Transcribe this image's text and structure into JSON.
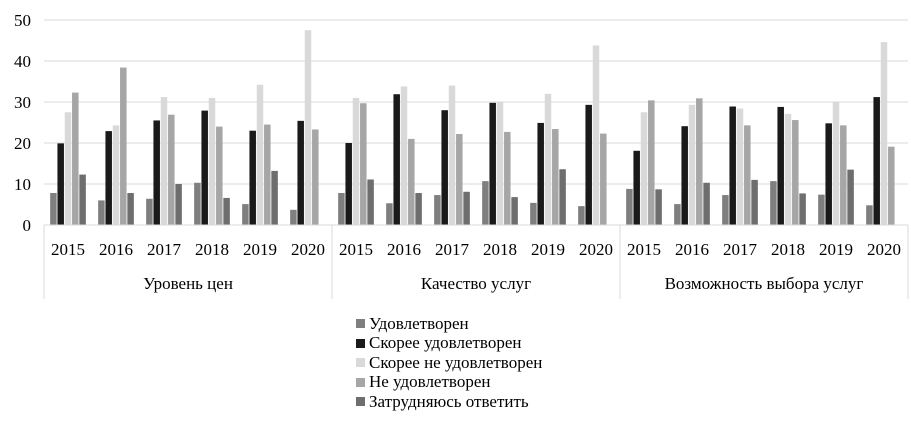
{
  "chart_data": {
    "type": "bar",
    "title": "",
    "xlabel": "",
    "ylabel": "",
    "ylim": [
      0,
      50
    ],
    "yticks": [
      0,
      10,
      20,
      30,
      40,
      50
    ],
    "grid": true,
    "legend_position": "bottom",
    "groups": [
      {
        "label": "Уровень цен",
        "categories": [
          "2015",
          "2016",
          "2017",
          "2018",
          "2019",
          "2020"
        ]
      },
      {
        "label": "Качество услуг",
        "categories": [
          "2015",
          "2016",
          "2017",
          "2018",
          "2019",
          "2020"
        ]
      },
      {
        "label": "Возможность выбора услуг",
        "categories": [
          "2015",
          "2016",
          "2017",
          "2018",
          "2019",
          "2020"
        ]
      }
    ],
    "series": [
      {
        "name": "Удовлетворен",
        "color": "#7f7f7f",
        "values": [
          7.8,
          6.0,
          6.4,
          10.3,
          5.1,
          3.7,
          7.8,
          5.3,
          7.3,
          10.7,
          5.4,
          4.6,
          8.8,
          5.1,
          7.3,
          10.7,
          7.4,
          4.8
        ]
      },
      {
        "name": "Скорее удовлетворен",
        "color": "#1a1a1a",
        "values": [
          19.9,
          22.9,
          25.5,
          27.9,
          23.0,
          25.4,
          20.0,
          31.9,
          28.0,
          29.8,
          24.9,
          29.3,
          18.1,
          24.1,
          28.9,
          28.8,
          24.8,
          31.2
        ]
      },
      {
        "name": "Скорее не удовлетворен",
        "color": "#d9d9d9",
        "values": [
          27.5,
          24.3,
          31.2,
          31.0,
          34.2,
          47.5,
          31.0,
          33.8,
          34.0,
          30.0,
          32.0,
          43.8,
          27.5,
          29.3,
          28.4,
          27.1,
          30.0,
          44.6
        ]
      },
      {
        "name": "Не удовлетворен",
        "color": "#a6a6a6",
        "values": [
          32.3,
          38.4,
          26.9,
          24.0,
          24.5,
          23.3,
          29.7,
          21.0,
          22.2,
          22.7,
          23.4,
          22.3,
          30.4,
          30.9,
          24.3,
          25.6,
          24.3,
          19.1
        ]
      },
      {
        "name": "Затрудняюсь ответить",
        "color": "#6e6e6e",
        "values": [
          12.3,
          7.8,
          10.0,
          6.6,
          13.2,
          0,
          11.1,
          7.8,
          8.1,
          6.8,
          13.6,
          0,
          8.7,
          10.3,
          11.0,
          7.7,
          13.5,
          0
        ]
      }
    ]
  }
}
